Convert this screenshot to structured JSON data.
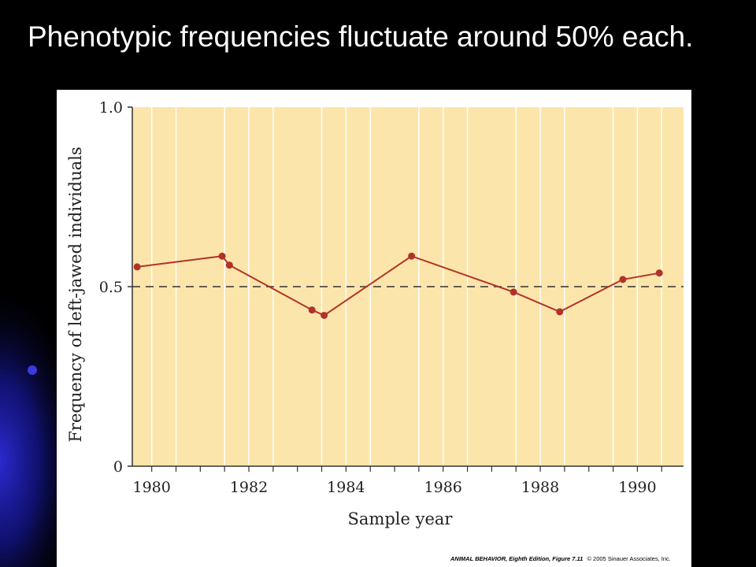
{
  "slide": {
    "title": "Phenotypic frequencies fluctuate around 50% each.",
    "background_color": "#000000",
    "accent_color": "#1a1aa8"
  },
  "figure": {
    "credit_bold": "ANIMAL BEHAVIOR, Eighth Edition, Figure 7.11",
    "credit_rest": "© 2005 Sinauer Associates, Inc."
  },
  "chart_data": {
    "type": "line",
    "title": "",
    "xlabel": "Sample year",
    "ylabel": "Frequency of left-jawed individuals",
    "xlim": [
      1979.6,
      1990.95
    ],
    "ylim": [
      0,
      1.0
    ],
    "x_ticks": [
      1980,
      1982,
      1984,
      1986,
      1988,
      1990
    ],
    "y_ticks": [
      0,
      0.5,
      1.0
    ],
    "x_tick_labels": [
      "1980",
      "1982",
      "1984",
      "1986",
      "1988",
      "1990"
    ],
    "y_tick_labels": [
      "0",
      "0.5",
      "1.0"
    ],
    "reference_line": {
      "y": 0.5,
      "style": "dashed"
    },
    "grid": "vertical lines",
    "plot_background": "#fce5aa",
    "line_color": "#b0332b",
    "series": [
      {
        "x": [
          1979.7,
          1981.45,
          1981.6,
          1983.3,
          1983.55,
          1985.35,
          1987.45,
          1988.4,
          1989.7,
          1990.45
        ],
        "y": [
          0.555,
          0.585,
          0.56,
          0.435,
          0.42,
          0.585,
          0.485,
          0.43,
          0.52,
          0.538
        ]
      }
    ]
  }
}
